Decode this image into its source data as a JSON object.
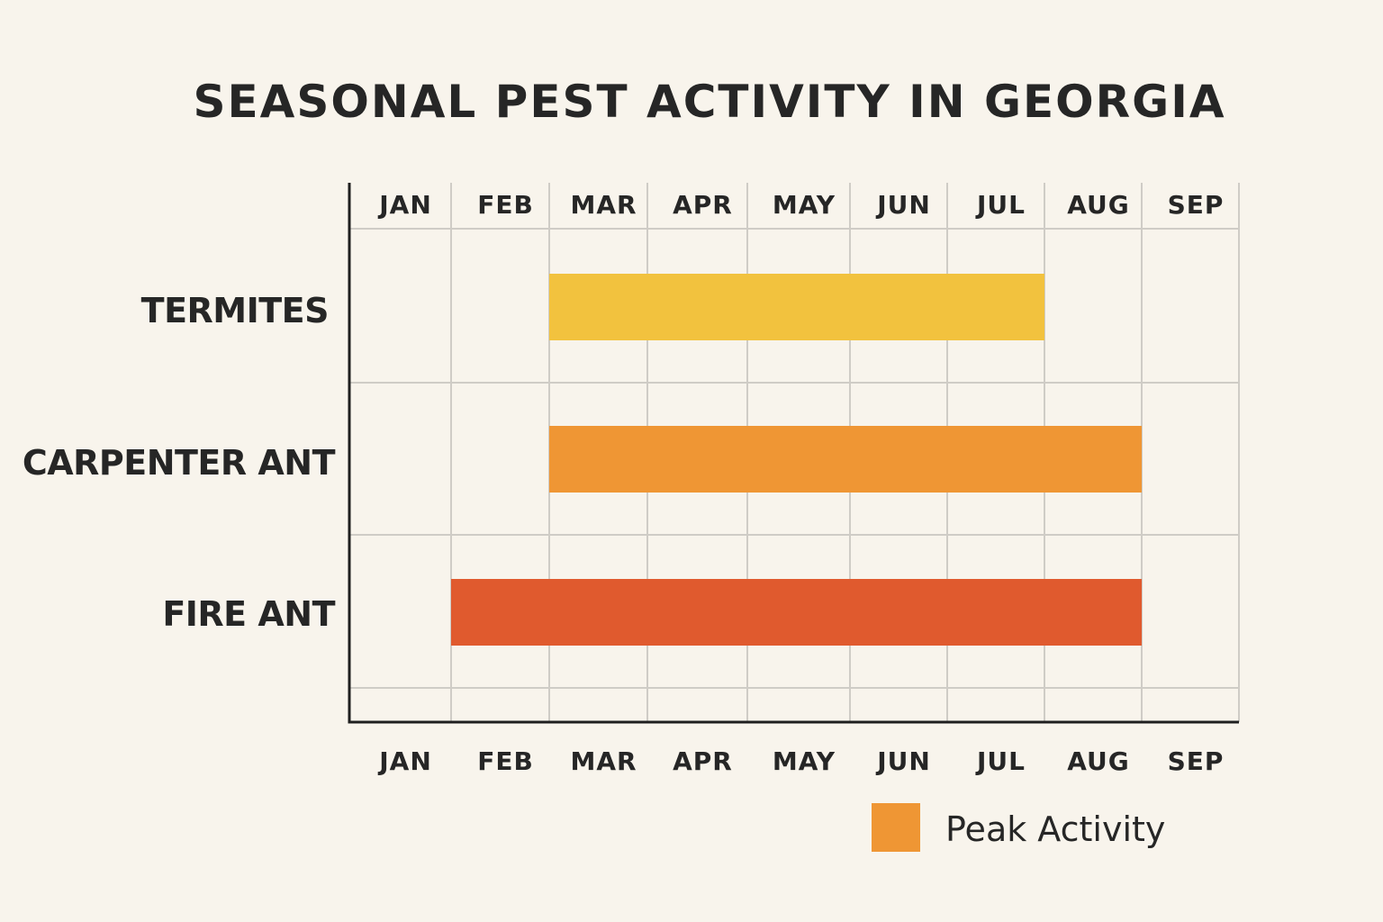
{
  "chart_data": {
    "type": "bar",
    "orientation": "horizontal",
    "subtype": "gantt",
    "title": "SEASONAL PEST ACTIVITY IN GEORGIA",
    "months_top": [
      "JAN",
      "FEB",
      "MAR",
      "APR",
      "MAY",
      "JUN",
      "JUL",
      "AUG",
      "SEP"
    ],
    "months_bottom": [
      "JAN",
      "FEB",
      "MAR",
      "APR",
      "MAY",
      "JUN",
      "JUL",
      "AUG",
      "SEP"
    ],
    "categories": [
      "TERMITES",
      "CARPENTER ANT",
      "FIRE ANT"
    ],
    "bars": [
      {
        "category": "TERMITES",
        "start_month": 3,
        "end_month": 7,
        "color": "#f2c23e"
      },
      {
        "category": "CARPENTER ANT",
        "start_month": 3,
        "end_month": 8,
        "color": "#ef9634"
      },
      {
        "category": "FIRE ANT",
        "start_month": 2,
        "end_month": 8,
        "color": "#e05a2e"
      }
    ],
    "legend": {
      "label": "Peak Activity",
      "color": "#ef9634",
      "position": "bottom-right"
    },
    "grid": true
  }
}
